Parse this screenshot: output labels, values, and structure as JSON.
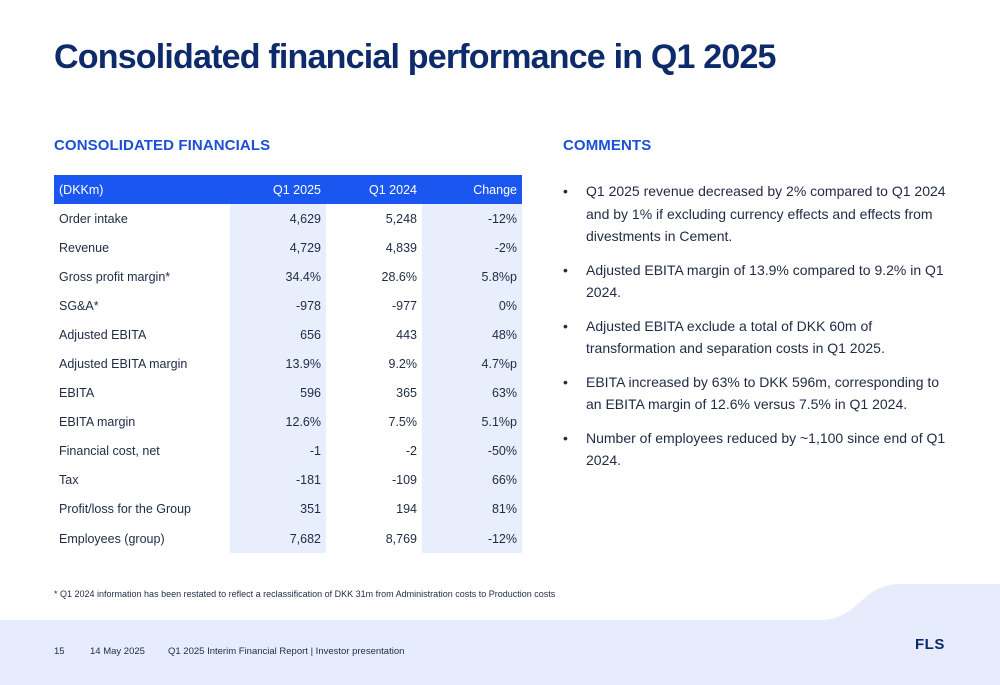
{
  "title": "Consolidated financial performance in Q1 2025",
  "financials": {
    "heading": "CONSOLIDATED FINANCIALS",
    "columns": [
      "(DKKm)",
      "Q1 2025",
      "Q1 2024",
      "Change"
    ],
    "rows": [
      [
        "Order intake",
        "4,629",
        "5,248",
        "-12%"
      ],
      [
        "Revenue",
        "4,729",
        "4,839",
        "-2%"
      ],
      [
        "Gross profit margin*",
        "34.4%",
        "28.6%",
        "5.8%p"
      ],
      [
        "SG&A*",
        "-978",
        "-977",
        "0%"
      ],
      [
        "Adjusted EBITA",
        "656",
        "443",
        "48%"
      ],
      [
        "Adjusted EBITA margin",
        "13.9%",
        "9.2%",
        "4.7%p"
      ],
      [
        "EBITA",
        "596",
        "365",
        "63%"
      ],
      [
        "EBITA margin",
        "12.6%",
        "7.5%",
        "5.1%p"
      ],
      [
        "Financial cost, net",
        "-1",
        "-2",
        "-50%"
      ],
      [
        "Tax",
        "-181",
        "-109",
        "66%"
      ],
      [
        "Profit/loss for the Group",
        "351",
        "194",
        "81%"
      ],
      [
        "Employees (group)",
        "7,682",
        "8,769",
        "-12%"
      ]
    ]
  },
  "comments": {
    "heading": "COMMENTS",
    "bullet": "•",
    "items": [
      "Q1 2025 revenue decreased by 2% compared to Q1 2024 and by 1% if excluding currency effects and effects from divestments in Cement.",
      "Adjusted EBITA margin of 13.9% compared to 9.2% in Q1 2024.",
      "Adjusted EBITA exclude a total of DKK 60m of transformation and separation costs in Q1 2025.",
      "EBITA increased by 63% to DKK 596m, corresponding to an EBITA margin of 12.6% versus 7.5% in Q1 2024.",
      "Number of employees reduced by ~1,100 since end of Q1 2024."
    ]
  },
  "footnote": "* Q1 2024 information has been restated to reflect a reclassification of DKK 31m from Administration costs to Production costs",
  "footer": {
    "page_number": "15",
    "date": "14 May 2025",
    "report": "Q1 2025 Interim Financial Report | Investor presentation",
    "logo": "FLS"
  },
  "colors": {
    "title": "#0d2a6b",
    "accent": "#1a56f0",
    "column_shade": "#e9eefc",
    "footer_band": "#e6ecfb"
  }
}
